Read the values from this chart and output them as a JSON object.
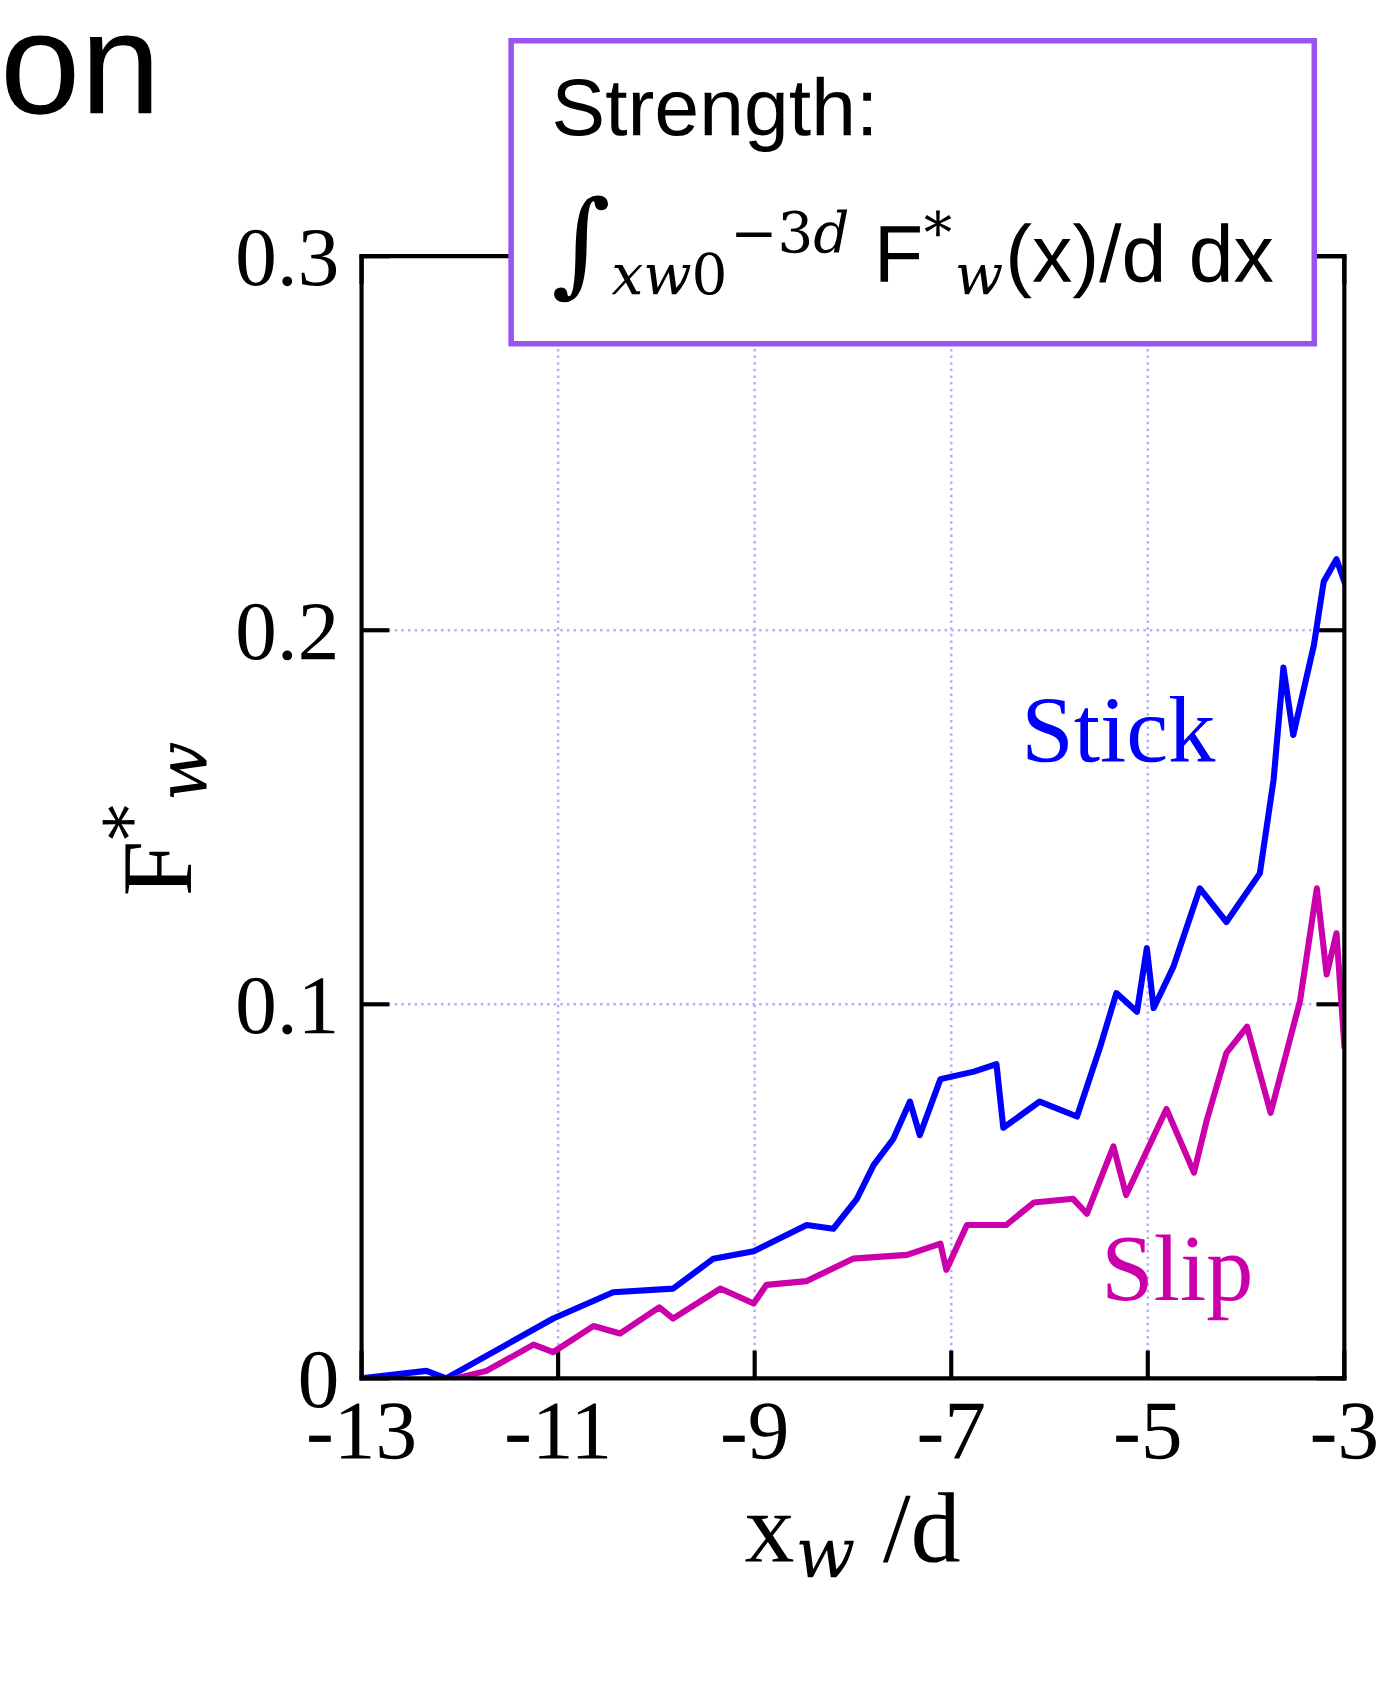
{
  "chart_data": {
    "type": "line",
    "title": "on",
    "xlabel": "x$_{w}$ /d",
    "ylabel": "F$^{*}$$_{w}$",
    "annotations": [
      "Strength:\n∫$_{xw0}$$^{−3d}$ F$^{*}$$_{w}$(x)/d dx"
    ],
    "xlim": [
      -13,
      -3
    ],
    "xticks": [
      {
        "value": -13,
        "label": "-13"
      },
      {
        "value": -11,
        "label": "-11"
      },
      {
        "value": -9,
        "label": "-9"
      },
      {
        "value": -7,
        "label": "-7"
      },
      {
        "value": -5,
        "label": "-5"
      },
      {
        "value": -3,
        "label": "-3"
      }
    ],
    "ylim": [
      0,
      0.3
    ],
    "yticks": [
      0,
      0.1,
      0.2,
      0.3
    ],
    "grid": true,
    "legend": false,
    "marker": "none",
    "line_style": "solid",
    "series": [
      {
        "name": "Stick",
        "color": "#0000ff",
        "x": [
          -13,
          -12.34,
          -12.14,
          -11.73,
          -11.05,
          -10.44,
          -9.83,
          -9.42,
          -9.01,
          -8.47,
          -8.2,
          -7.96,
          -7.79,
          -7.59,
          -7.42,
          -7.32,
          -7.11,
          -6.77,
          -6.54,
          -6.47,
          -6.1,
          -5.72,
          -5.48,
          -5.32,
          -5.11,
          -5.01,
          -4.94,
          -4.74,
          -4.47,
          -4.2,
          -3.86,
          -3.72,
          -3.62,
          -3.52,
          -3.31,
          -3.21,
          -3.08,
          -3.0
        ],
        "values": [
          0.0,
          0.002,
          0.0,
          0.006,
          0.016,
          0.023,
          0.024,
          0.032,
          0.034,
          0.041,
          0.04,
          0.048,
          0.057,
          0.064,
          0.074,
          0.065,
          0.08,
          0.082,
          0.084,
          0.067,
          0.074,
          0.07,
          0.089,
          0.103,
          0.098,
          0.115,
          0.099,
          0.11,
          0.131,
          0.122,
          0.135,
          0.16,
          0.19,
          0.172,
          0.196,
          0.213,
          0.219,
          0.213
        ]
      },
      {
        "name": "Slip",
        "color": "#cc00aa",
        "x": [
          -12.04,
          -11.73,
          -11.25,
          -11.05,
          -10.64,
          -10.37,
          -9.97,
          -9.83,
          -9.35,
          -9.01,
          -8.88,
          -8.47,
          -8.0,
          -7.45,
          -7.11,
          -7.05,
          -6.84,
          -6.44,
          -6.16,
          -5.76,
          -5.62,
          -5.35,
          -5.22,
          -4.81,
          -4.53,
          -4.4,
          -4.2,
          -3.99,
          -3.75,
          -3.45,
          -3.28,
          -3.18,
          -3.08,
          -3.0
        ],
        "values": [
          0.0,
          0.002,
          0.009,
          0.007,
          0.014,
          0.012,
          0.019,
          0.016,
          0.024,
          0.02,
          0.025,
          0.026,
          0.032,
          0.033,
          0.036,
          0.029,
          0.041,
          0.041,
          0.047,
          0.048,
          0.044,
          0.062,
          0.049,
          0.072,
          0.055,
          0.069,
          0.087,
          0.094,
          0.071,
          0.101,
          0.131,
          0.108,
          0.119,
          0.089
        ]
      }
    ]
  }
}
